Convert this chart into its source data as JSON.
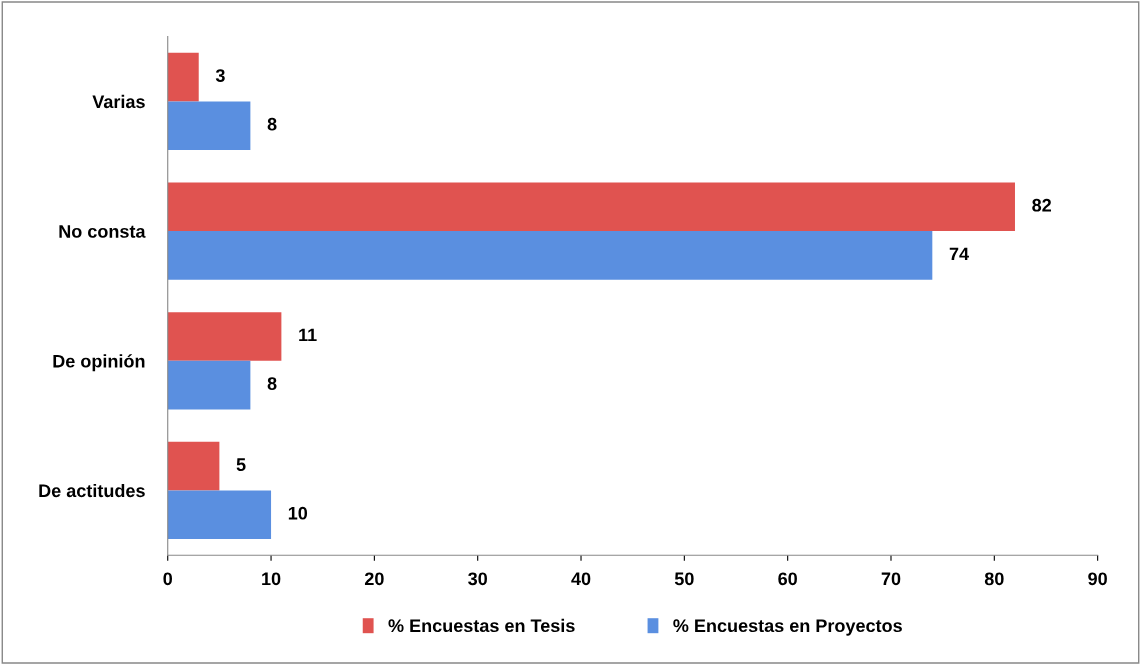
{
  "chart_data": {
    "type": "bar",
    "orientation": "horizontal",
    "categories": [
      "Varias",
      "No consta",
      "De opinión",
      "De actitudes"
    ],
    "series": [
      {
        "name": "% Encuestas en Tesis",
        "color": "#e05350",
        "values": [
          3,
          82,
          11,
          5
        ]
      },
      {
        "name": "% Encuestas en Proyectos",
        "color": "#5a8fe0",
        "values": [
          8,
          74,
          8,
          10
        ]
      }
    ],
    "xlim": [
      0,
      90
    ],
    "xticks": [
      0,
      10,
      20,
      30,
      40,
      50,
      60,
      70,
      80,
      90
    ],
    "data_labels": true,
    "grid": false,
    "legend": "bottom"
  }
}
